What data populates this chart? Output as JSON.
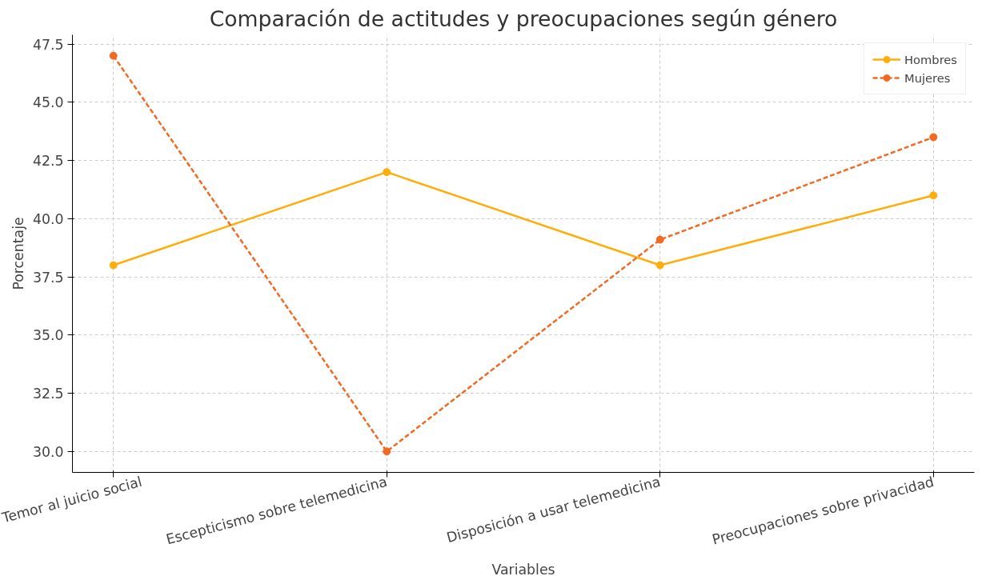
{
  "chart_data": {
    "type": "line",
    "title": "Comparación de actitudes y preocupaciones según género",
    "xlabel": "Variables",
    "ylabel": "Porcentaje",
    "categories": [
      "Temor al juicio social",
      "Escepticismo sobre telemedicina",
      "Disposición a usar telemedicina",
      "Preocupaciones sobre privacidad"
    ],
    "series": [
      {
        "name": "Hombres",
        "color": "#ffad0a",
        "values": [
          38,
          42,
          38,
          41
        ],
        "line_style": "solid"
      },
      {
        "name": "Mujeres",
        "color": "#f26a21",
        "values": [
          47,
          30,
          39.1,
          43.5
        ],
        "line_style": "dashed"
      }
    ],
    "ylim": [
      29.1,
      47.9
    ],
    "yticks": [
      {
        "value": 30,
        "label": "30.0"
      },
      32.5,
      {
        "value": 35,
        "label": "35.0"
      },
      37.5,
      {
        "value": 40,
        "label": "40.0"
      },
      42.5,
      {
        "value": 45,
        "label": "45.0"
      },
      47.5
    ],
    "grid": true,
    "legend": "top right",
    "marker": "circle"
  }
}
